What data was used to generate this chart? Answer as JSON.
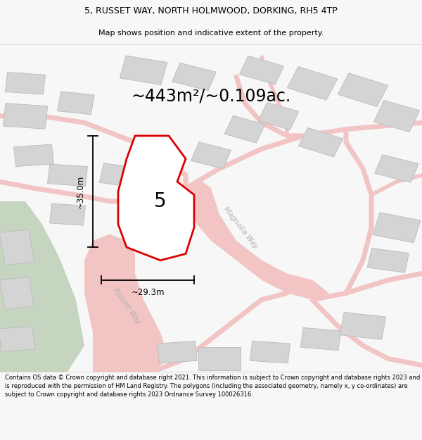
{
  "title_line1": "5, RUSSET WAY, NORTH HOLMWOOD, DORKING, RH5 4TP",
  "title_line2": "Map shows position and indicative extent of the property.",
  "area_text": "~443m²/~0.109ac.",
  "dimension_vertical": "~35.0m",
  "dimension_horizontal": "~29.3m",
  "label_number": "5",
  "street_label1": "Magnolia Way",
  "street_label2": "Russet Way",
  "footer_text": "Contains OS data © Crown copyright and database right 2021. This information is subject to Crown copyright and database rights 2023 and is reproduced with the permission of HM Land Registry. The polygons (including the associated geometry, namely x, y co-ordinates) are subject to Crown copyright and database rights 2023 Ordnance Survey 100026316.",
  "bg_color": "#f7f7f7",
  "map_bg": "#f2f2f2",
  "plot_fill": "#ffffff",
  "plot_stroke": "#dd0000",
  "road_color": "#f2c4c4",
  "road_stroke": "#e8a0a0",
  "building_color": "#d4d4d4",
  "building_stroke": "#bbbbbb",
  "green_color": "#c5d5c0",
  "title_color": "#000000",
  "footer_color": "#000000",
  "dim_color": "#000000",
  "street_label_color": "#b0b0b0"
}
